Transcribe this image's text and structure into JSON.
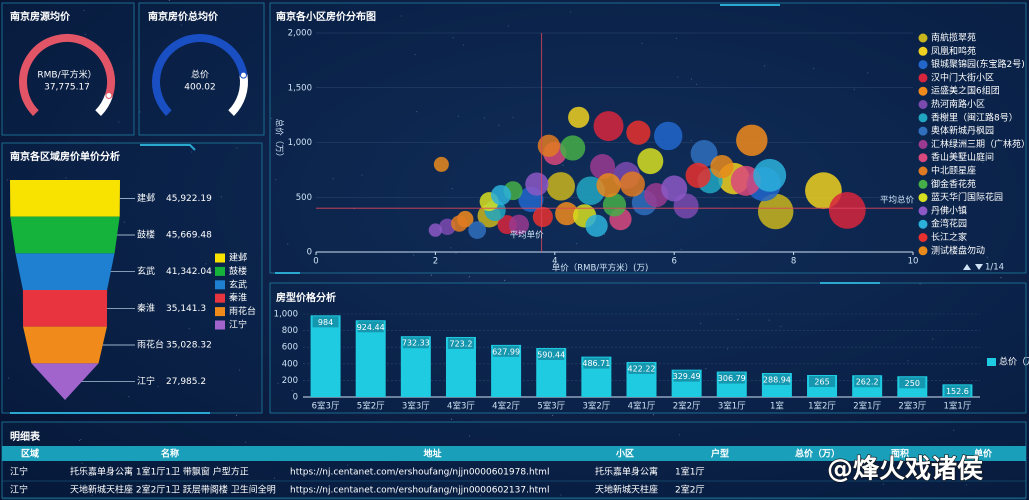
{
  "chart_data": [
    {
      "type": "gauge",
      "title": "南京房源均价",
      "label": "RMB/平方米）",
      "value": 37775.17,
      "value_label": "37,775.17",
      "lim": [
        0,
        42000
      ],
      "color": "#e25566"
    },
    {
      "type": "gauge",
      "title": "南京房价总均价",
      "label": "总价",
      "value": 400.02,
      "lim": [
        0,
        500
      ],
      "color": "#1a4fc4"
    },
    {
      "type": "funnel",
      "title": "南京各区域房价单价分析",
      "categories": [
        "建邺",
        "鼓楼",
        "玄武",
        "秦淮",
        "雨花台",
        "江宁"
      ],
      "values": [
        45922.19,
        45669.48,
        41342.04,
        35141.3,
        35028.32,
        27985.2
      ],
      "value_labels": [
        "45,922.19",
        "45,669.48",
        "41,342.04",
        "35,141.3",
        "35,028.32",
        "27,985.2"
      ],
      "colors": [
        "#f7e200",
        "#15b33c",
        "#1f7fd0",
        "#e8343f",
        "#f08a1a",
        "#a163cc"
      ]
    },
    {
      "type": "scatter",
      "title": "南京各小区房价分布图",
      "x_label": "单价（RMB/平方米）(万)",
      "y_label": "总价（万）",
      "xlim": [
        0,
        10
      ],
      "xticks": [
        0,
        2,
        4,
        6,
        8,
        10
      ],
      "ylim": [
        0,
        2000
      ],
      "yticks": [
        0,
        500,
        {
          "value": 1000,
          "label": "1,000"
        },
        {
          "value": 1500,
          "label": "1,500"
        },
        {
          "value": 2000,
          "label": "2,000"
        }
      ],
      "legend_page": "1/14",
      "mark_lines": [
        {
          "label": "平均总价",
          "axis": "y",
          "value": 400
        },
        {
          "label": "平均单价",
          "axis": "x",
          "value": 3.78
        }
      ],
      "series": [
        {
          "name": "南航揽翠苑",
          "color": "#c9b51c",
          "x": [
            2.9,
            4.1,
            7.7
          ],
          "values": [
            330,
            600,
            370
          ],
          "sizes": [
            60,
            90,
            140
          ]
        },
        {
          "name": "凤凰和鸣苑",
          "color": "#f0d020",
          "x": [
            4.4,
            7.0,
            8.5
          ],
          "values": [
            1230,
            670,
            560
          ],
          "sizes": [
            50,
            110,
            150
          ]
        },
        {
          "name": "银城聚锦园(东宝路2号)",
          "color": "#2266cc",
          "x": [
            5.9,
            3.6,
            7.5
          ],
          "values": [
            1060,
            480,
            620
          ],
          "sizes": [
            90,
            70,
            130
          ]
        },
        {
          "name": "汉中门大街小区",
          "color": "#d8243c",
          "x": [
            4.9,
            8.9,
            3.2
          ],
          "values": [
            1150,
            380,
            250
          ],
          "sizes": [
            100,
            150,
            40
          ]
        },
        {
          "name": "运盛美之国6组团",
          "color": "#f08a1c",
          "x": [
            7.3,
            4.2,
            2.5
          ],
          "values": [
            1020,
            350,
            300
          ],
          "sizes": [
            110,
            60,
            30
          ]
        },
        {
          "name": "热河南路小区",
          "color": "#7b4aaf",
          "x": [
            5.2,
            2.2,
            6.2
          ],
          "values": [
            700,
            230,
            420
          ],
          "sizes": [
            80,
            30,
            70
          ]
        },
        {
          "name": "香榭里（闽江路8号）",
          "color": "#21a6c2",
          "x": [
            4.6,
            3.0,
            6.6
          ],
          "values": [
            560,
            380,
            650
          ],
          "sizes": [
            90,
            50,
            70
          ]
        },
        {
          "name": "奥体新城丹枫园",
          "color": "#2f6fbd",
          "x": [
            6.5,
            5.5,
            2.7
          ],
          "values": [
            900,
            450,
            200
          ],
          "sizes": [
            80,
            70,
            35
          ]
        },
        {
          "name": "汇林绿洲三期（广林苑）",
          "color": "#9a3a90",
          "x": [
            4.8,
            3.4,
            5.7
          ],
          "values": [
            780,
            250,
            520
          ],
          "sizes": [
            70,
            45,
            65
          ]
        },
        {
          "name": "香山美墅山庭间",
          "color": "#d8487c",
          "x": [
            7.2,
            4.0,
            5.1
          ],
          "values": [
            650,
            900,
            300
          ],
          "sizes": [
            100,
            60,
            55
          ]
        },
        {
          "name": "中北颐星座",
          "color": "#e07a22",
          "x": [
            3.9,
            5.3,
            2.4
          ],
          "values": [
            970,
            620,
            260
          ],
          "sizes": [
            55,
            70,
            30
          ]
        },
        {
          "name": "御金香花苑",
          "color": "#45ae48",
          "x": [
            4.3,
            3.3,
            5.0
          ],
          "values": [
            950,
            560,
            430
          ],
          "sizes": [
            70,
            40,
            60
          ]
        },
        {
          "name": "蓝天华门国际花园",
          "color": "#d6df20",
          "x": [
            5.6,
            2.9,
            4.5
          ],
          "values": [
            830,
            460,
            330
          ],
          "sizes": [
            75,
            40,
            60
          ]
        },
        {
          "name": "丹佛小镇",
          "color": "#8c58c6",
          "x": [
            3.7,
            6.0,
            2.0
          ],
          "values": [
            620,
            580,
            200
          ],
          "sizes": [
            60,
            75,
            20
          ]
        },
        {
          "name": "金湾花园",
          "color": "#2bb0da",
          "x": [
            7.6,
            4.7,
            3.1
          ],
          "values": [
            700,
            240,
            520
          ],
          "sizes": [
            120,
            55,
            45
          ]
        },
        {
          "name": "长江之家",
          "color": "#e8302e",
          "x": [
            5.4,
            3.8,
            6.4
          ],
          "values": [
            1090,
            320,
            700
          ],
          "sizes": [
            65,
            45,
            70
          ]
        },
        {
          "name": "测试楼盘勿动",
          "color": "#e8891c",
          "x": [
            2.1,
            6.8,
            4.9
          ],
          "values": [
            800,
            780,
            610
          ],
          "sizes": [
            25,
            60,
            65
          ]
        }
      ]
    },
    {
      "type": "bar",
      "title": "房型价格分析",
      "color": "#1ecbe1",
      "categories": [
        "6室3厅",
        "5室2厅",
        "3室3厅",
        "4室3厅",
        "4室2厅",
        "5室3厅",
        "3室2厅",
        "4室1厅",
        "2室2厅",
        "3室1厅",
        "1室",
        "1室2厅",
        "2室1厅",
        "2室3厅",
        "1室1厅"
      ],
      "series": [
        {
          "name": "总价（万）",
          "color": "#1ecbe1",
          "values": [
            984,
            924.44,
            732.33,
            723.2,
            627.99,
            590.44,
            486.71,
            422.22,
            329.49,
            306.79,
            288.94,
            265,
            262.2,
            250,
            152.6
          ]
        }
      ],
      "ylim": [
        0,
        1000
      ],
      "yticks": [
        0,
        200,
        400,
        600,
        800,
        {
          "value": 1000,
          "label": "1,000"
        }
      ]
    }
  ],
  "table": {
    "title": "明细表",
    "headers": [
      "区域",
      "名称",
      "地址",
      "小区",
      "户型",
      "总价（万）",
      "面积",
      "单价"
    ],
    "rows": [
      [
        "江宁",
        "托乐嘉单身公寓 1室1厅1卫 带飘窗 户型方正",
        "https://nj.centanet.com/ershoufang/njjn0000601978.html",
        "托乐嘉单身公寓",
        "1室1厅",
        null,
        null,
        null
      ],
      [
        "江宁",
        "天地新城天柱座 2室2厅1卫 跃层带阁楼 卫生间全明",
        "https://nj.centanet.com/ershoufang/njjn0000602137.html",
        "天地新城天柱座",
        "2室2厅",
        null,
        null,
        null
      ]
    ]
  },
  "watermark": "@烽火戏诸侯"
}
